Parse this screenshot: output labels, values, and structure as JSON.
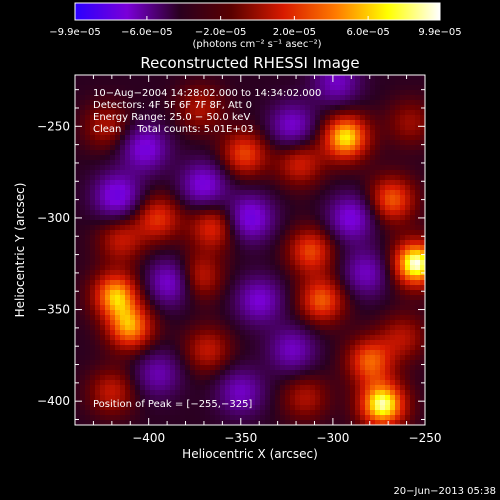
{
  "chart_data": {
    "type": "heatmap",
    "title": "Reconstructed RHESSI Image",
    "xlabel": "Heliocentric X (arcsec)",
    "ylabel": "Heliocentric Y (arcsec)",
    "xlim": [
      -440,
      -250
    ],
    "ylim": [
      -413,
      -222
    ],
    "x_ticks": [
      -400,
      -350,
      -300,
      -250
    ],
    "x_tick_labels": [
      "−400",
      "−350",
      "−300",
      "−250"
    ],
    "y_ticks": [
      -400,
      -350,
      -300,
      -250
    ],
    "y_tick_labels": [
      "−400",
      "−350",
      "−300",
      "−250"
    ],
    "colorbar": {
      "range": [
        -9.9e-05,
        9.9e-05
      ],
      "tick_labels": [
        "−9.9e−05",
        "−6.0e−05",
        "−2.0e−05",
        "2.0e−05",
        "6.0e−05",
        "9.9e−05"
      ],
      "tick_values": [
        -9.9e-05,
        -6e-05,
        -2e-05,
        2e-05,
        6e-05,
        9.9e-05
      ],
      "unit_label": "(photons cm⁻² s⁻¹ asec⁻²)",
      "colors": [
        "#2a00ff",
        "#7a00d8",
        "#2a0020",
        "#5a0000",
        "#d81a00",
        "#ff7a00",
        "#ffff00",
        "#ffffff"
      ]
    },
    "info_lines": [
      "10−Aug−2004 14:28:02.000 to 14:34:02.000",
      "Detectors: 4F 5F 6F 7F 8F, Att 0",
      "Energy Range: 25.0 − 50.0 keV",
      "Clean     Total counts: 5.01E+03"
    ],
    "peak_label": "Position of Peak = [−255,−325]",
    "peak": {
      "x": -255,
      "y": -325
    },
    "sources": [
      {
        "x": -423,
        "y": -250,
        "v": 0.35
      },
      {
        "x": -417,
        "y": -288,
        "v": -0.6
      },
      {
        "x": -415,
        "y": -312,
        "v": 0.4
      },
      {
        "x": -418,
        "y": -342,
        "v": 0.75
      },
      {
        "x": -410,
        "y": -360,
        "v": 0.7
      },
      {
        "x": -420,
        "y": -395,
        "v": 0.4
      },
      {
        "x": -402,
        "y": -262,
        "v": -0.55
      },
      {
        "x": -395,
        "y": -300,
        "v": 0.5
      },
      {
        "x": -388,
        "y": -335,
        "v": -0.55
      },
      {
        "x": -395,
        "y": -385,
        "v": -0.4
      },
      {
        "x": -372,
        "y": -240,
        "v": 0.35
      },
      {
        "x": -370,
        "y": -282,
        "v": -0.55
      },
      {
        "x": -365,
        "y": -305,
        "v": 0.5
      },
      {
        "x": -373,
        "y": -332,
        "v": 0.45
      },
      {
        "x": -368,
        "y": -372,
        "v": 0.4
      },
      {
        "x": -348,
        "y": -265,
        "v": 0.55
      },
      {
        "x": -345,
        "y": -300,
        "v": -0.6
      },
      {
        "x": -340,
        "y": -345,
        "v": -0.5
      },
      {
        "x": -350,
        "y": -395,
        "v": -0.45
      },
      {
        "x": -322,
        "y": -250,
        "v": -0.5
      },
      {
        "x": -318,
        "y": -270,
        "v": 0.45
      },
      {
        "x": -312,
        "y": -318,
        "v": 0.55
      },
      {
        "x": -306,
        "y": -345,
        "v": 0.6
      },
      {
        "x": -322,
        "y": -372,
        "v": -0.45
      },
      {
        "x": -315,
        "y": -398,
        "v": 0.35
      },
      {
        "x": -298,
        "y": -226,
        "v": -0.45
      },
      {
        "x": -293,
        "y": -256,
        "v": 0.85
      },
      {
        "x": -290,
        "y": -300,
        "v": -0.55
      },
      {
        "x": -282,
        "y": -330,
        "v": -0.45
      },
      {
        "x": -280,
        "y": -378,
        "v": 0.6
      },
      {
        "x": -273,
        "y": -402,
        "v": 0.95
      },
      {
        "x": -268,
        "y": -290,
        "v": 0.6
      },
      {
        "x": -258,
        "y": -248,
        "v": 0.3
      },
      {
        "x": -255,
        "y": -325,
        "v": 1.0
      },
      {
        "x": -262,
        "y": -365,
        "v": 0.35
      }
    ]
  },
  "timestamp": "20−Jun−2013 05:38"
}
